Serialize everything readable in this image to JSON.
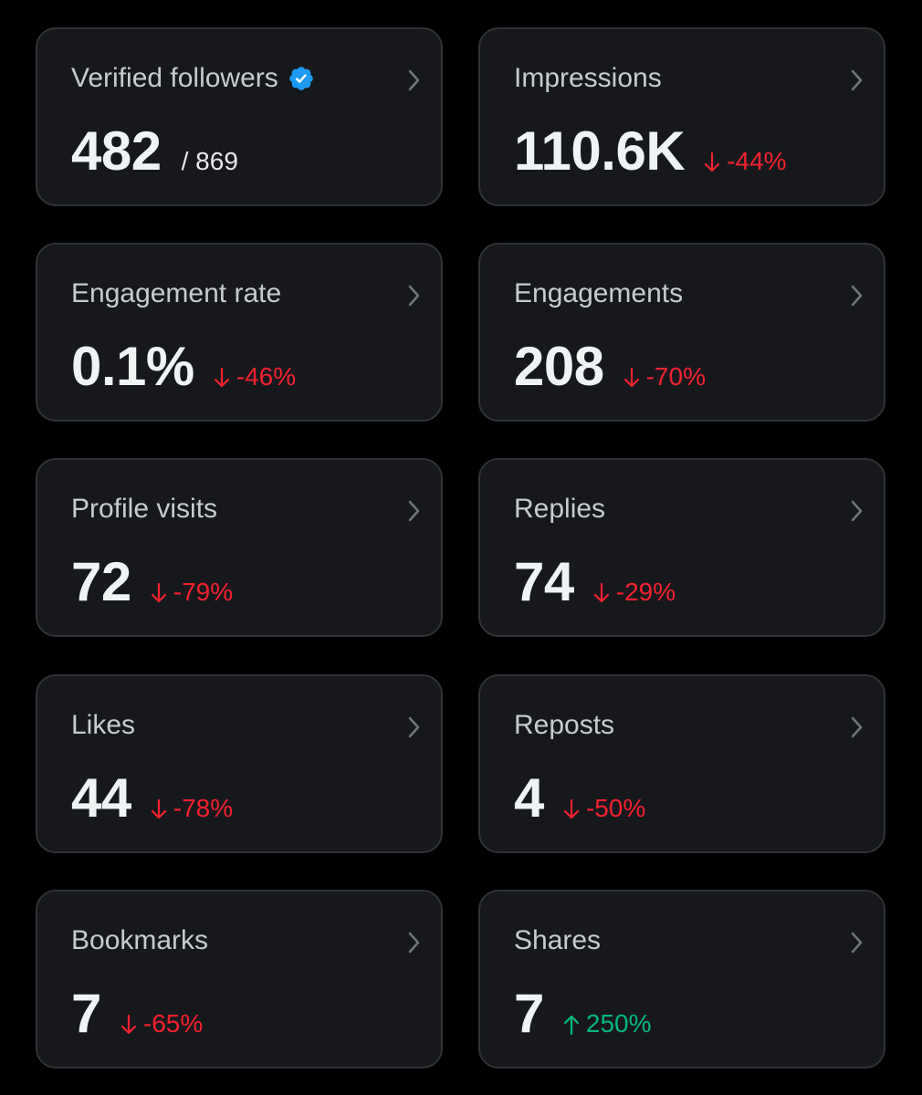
{
  "colors": {
    "background": "#000000",
    "card": "#16181c",
    "border": "#2f3336",
    "down": "#f4212e",
    "up": "#00ba7c",
    "verified": "#1d9bf0"
  },
  "cards": [
    {
      "title": "Verified followers",
      "value": "482",
      "total": "/ 869",
      "icon": "verified-badge-icon"
    },
    {
      "title": "Impressions",
      "value": "110.6K",
      "change": "-44%",
      "direction": "down"
    },
    {
      "title": "Engagement rate",
      "value": "0.1%",
      "change": "-46%",
      "direction": "down"
    },
    {
      "title": "Engagements",
      "value": "208",
      "change": "-70%",
      "direction": "down"
    },
    {
      "title": "Profile visits",
      "value": "72",
      "change": "-79%",
      "direction": "down"
    },
    {
      "title": "Replies",
      "value": "74",
      "change": "-29%",
      "direction": "down"
    },
    {
      "title": "Likes",
      "value": "44",
      "change": "-78%",
      "direction": "down"
    },
    {
      "title": "Reposts",
      "value": "4",
      "change": "-50%",
      "direction": "down"
    },
    {
      "title": "Bookmarks",
      "value": "7",
      "change": "-65%",
      "direction": "down"
    },
    {
      "title": "Shares",
      "value": "7",
      "change": "250%",
      "direction": "up"
    }
  ]
}
